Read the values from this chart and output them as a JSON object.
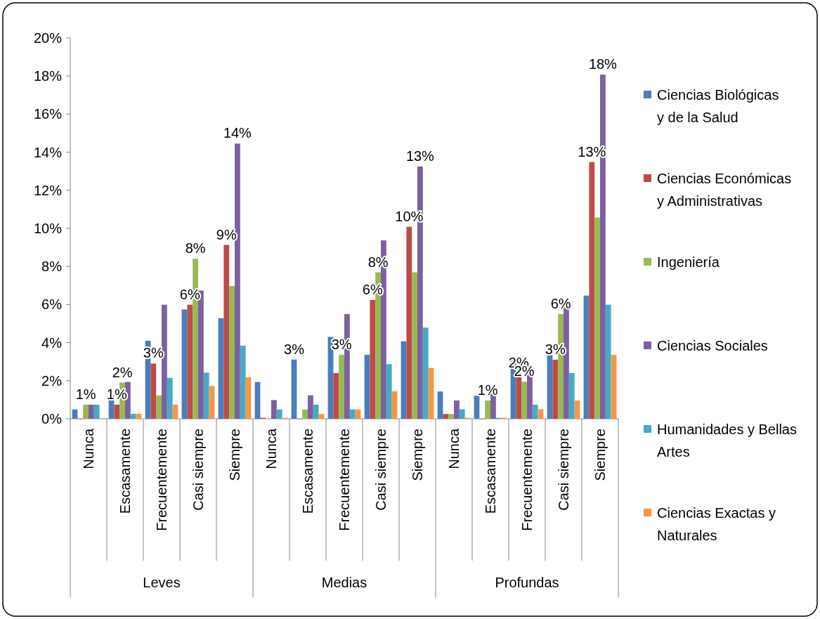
{
  "chart_data": {
    "type": "bar",
    "categories": [
      "Nunca",
      "Escasamente",
      "Frecuentemente",
      "Casi siempre",
      "Siempre",
      "Nunca",
      "Escasamente",
      "Frecuentemente",
      "Casi siempre",
      "Siempre",
      "Nunca",
      "Escasamente",
      "Frecuentemente",
      "Casi siempre",
      "Siempre"
    ],
    "annotations": [
      "Leves",
      "Medias",
      "Profundas"
    ],
    "ylim": [
      0,
      20
    ],
    "yticks": [
      {
        "value": 0,
        "label": "0%"
      },
      {
        "value": 2,
        "label": "2%"
      },
      {
        "value": 4,
        "label": "4%"
      },
      {
        "value": 6,
        "label": "6%"
      },
      {
        "value": 8,
        "label": "8%"
      },
      {
        "value": 10,
        "label": "10%"
      },
      {
        "value": 12,
        "label": "12%"
      },
      {
        "value": 14,
        "label": "14%"
      },
      {
        "value": 16,
        "label": "16%"
      },
      {
        "value": 18,
        "label": "18%"
      },
      {
        "value": 20,
        "label": "20%"
      }
    ],
    "grid": false,
    "legend": "right",
    "series": [
      {
        "name": "Ciencias Biológicas y de la Salud",
        "color": "#4a7ebb",
        "values": [
          0.49,
          1.23,
          4.1,
          5.74,
          5.28,
          1.93,
          3.11,
          4.3,
          3.36,
          4.07,
          1.43,
          1.21,
          3.1,
          3.35,
          6.47
        ],
        "value_labels": [
          null,
          null,
          null,
          null,
          null,
          null,
          "3%",
          null,
          null,
          null,
          null,
          null,
          null,
          null,
          null
        ]
      },
      {
        "name": "Ciencias Económicas y Administrativas",
        "color": "#be4b48",
        "values": [
          0,
          0.74,
          2.9,
          5.99,
          9.13,
          0.05,
          0,
          2.4,
          6.24,
          10.08,
          0.25,
          0,
          2.4,
          3.1,
          13.48
        ],
        "value_labels": [
          null,
          "1%",
          "3%",
          "6%",
          "9%",
          null,
          null,
          null,
          "6%",
          "10%",
          null,
          null,
          "2%",
          "3%",
          "13%"
        ]
      },
      {
        "name": "Ingeniería",
        "color": "#98b954",
        "values": [
          0.74,
          1.9,
          1.23,
          8.4,
          6.97,
          null,
          0.49,
          3.36,
          7.69,
          7.69,
          0.25,
          0.96,
          1.94,
          5.5,
          10.57
        ],
        "value_labels": [
          "1%",
          "2%",
          null,
          "8%",
          null,
          null,
          null,
          "3%",
          "8%",
          null,
          null,
          "1%",
          "2%",
          "6%",
          null
        ]
      },
      {
        "name": "Ciencias Sociales",
        "color": "#7d60a0",
        "values": [
          0.74,
          1.93,
          5.99,
          6.73,
          14.45,
          0.98,
          1.23,
          5.5,
          9.37,
          13.25,
          0.96,
          1.66,
          2.75,
          6.24,
          18.07
        ],
        "value_labels": [
          null,
          null,
          null,
          null,
          "14%",
          null,
          null,
          null,
          null,
          "13%",
          null,
          null,
          null,
          null,
          "18%"
        ]
      },
      {
        "name": "Humanidades y Bellas Artes",
        "color": "#46aac5",
        "values": [
          0.74,
          0.26,
          2.15,
          2.42,
          3.84,
          0.49,
          0.74,
          0.49,
          2.87,
          4.79,
          0.5,
          0.05,
          0.74,
          2.4,
          5.99
        ]
      },
      {
        "name": "Ciencias Exactas y Naturales",
        "color": "#f79646",
        "values": [
          0,
          0.26,
          0.74,
          1.72,
          2.18,
          0.05,
          0.25,
          0.49,
          1.45,
          2.67,
          0.05,
          0.05,
          0.5,
          0.96,
          3.35
        ]
      }
    ]
  }
}
